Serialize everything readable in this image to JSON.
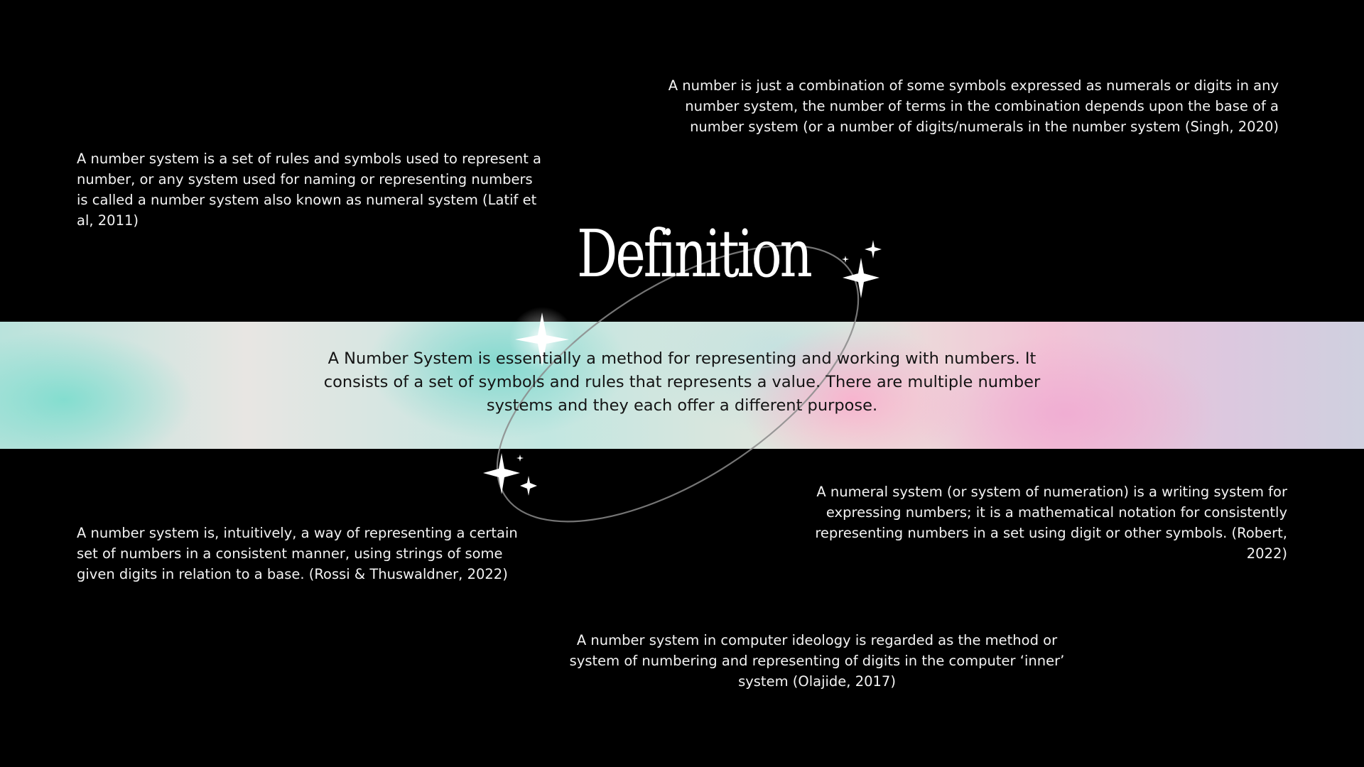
{
  "slide": {
    "title": "Definition",
    "main_statement": "A Number System is essentially a method for representing and working with numbers. It consists of a set of symbols and rules that represents a value. There are multiple number systems and they each offer a different purpose.",
    "definitions": {
      "top_left": "A number system is a set of rules and symbols used to represent a number, or any system used for naming or representing numbers is called a number system also known as numeral system (Latif et al, 2011)",
      "top_right": "A number is just a combination of some symbols expressed as numerals or digits in any number system, the number of terms in the combination depends upon the base of a number system (or a number of digits/numerals in the number system (Singh, 2020)",
      "bottom_left": "A number system is, intuitively, a way of representing a certain set of numbers in a consistent manner, using strings of some given digits in relation to a base. (Rossi & Thuswaldner, 2022)",
      "bottom_right": "A numeral system (or system of numeration) is a writing system for expressing numbers; it is a mathematical notation for consistently representing numbers in a set using digit or other symbols. (Robert, 2022)",
      "bottom_center": "A number system in computer ideology is regarded as the method or system of numbering and representing of digits in the computer ‘inner’ system (Olajide, 2017)"
    },
    "icons": [
      "sparkle-icon",
      "orbit-ring"
    ],
    "colors": {
      "background": "#000000",
      "text": "#f3f3f3",
      "band_text": "#141414",
      "band_teal": "#8fdcd0",
      "band_pink": "#f2b3cf"
    }
  }
}
